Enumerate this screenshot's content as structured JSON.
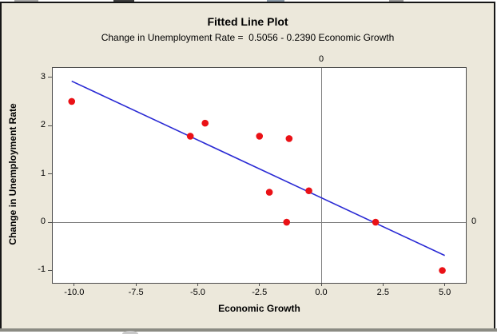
{
  "window": {
    "background": "#ece8db",
    "frame_color": "#161616",
    "bottom_border_color": "#8b8b83"
  },
  "chart_data": {
    "type": "scatter",
    "title": "Fitted Line Plot",
    "subtitle": "Change in Unemployment Rate =  0.5056 - 0.2390 Economic Growth",
    "xlabel": "Economic Growth",
    "ylabel": "Change in Unemployment Rate",
    "x_axis": {
      "tick_labels": [
        "-10.0",
        "-7.5",
        "-5.0",
        "-2.5",
        "0.0",
        "2.5",
        "5.0"
      ],
      "tick_values": [
        -10.0,
        -7.5,
        -5.0,
        -2.5,
        0.0,
        2.5,
        5.0
      ],
      "range": [
        -10.9,
        5.82
      ]
    },
    "y_axis": {
      "tick_labels": [
        "3",
        "2",
        "1",
        "0",
        "-1"
      ],
      "tick_values": [
        3,
        2,
        1,
        0,
        -1
      ],
      "range": [
        -1.24,
        3.21
      ]
    },
    "points": [
      [
        -10.1,
        2.5
      ],
      [
        -5.3,
        1.78
      ],
      [
        -4.7,
        2.05
      ],
      [
        -2.5,
        1.78
      ],
      [
        -2.1,
        0.62
      ],
      [
        -1.4,
        0.0
      ],
      [
        -1.3,
        1.73
      ],
      [
        -0.5,
        0.65
      ],
      [
        2.2,
        0.0
      ],
      [
        4.9,
        -1.0
      ]
    ],
    "fitted_line": {
      "equation": "y = 0.5056 - 0.2390 x",
      "intercept": 0.5056,
      "slope": -0.239,
      "x_start": -10.1,
      "x_end": 5.0,
      "color": "#2a2ad4"
    },
    "reference_lines": [
      {
        "axis": "x",
        "value": 0,
        "label": "0"
      },
      {
        "axis": "y",
        "value": 0,
        "label": "0"
      }
    ],
    "point_color": "#ea1116",
    "reference_line_color": "#7f7f7f",
    "grid": false,
    "legend": "none"
  }
}
